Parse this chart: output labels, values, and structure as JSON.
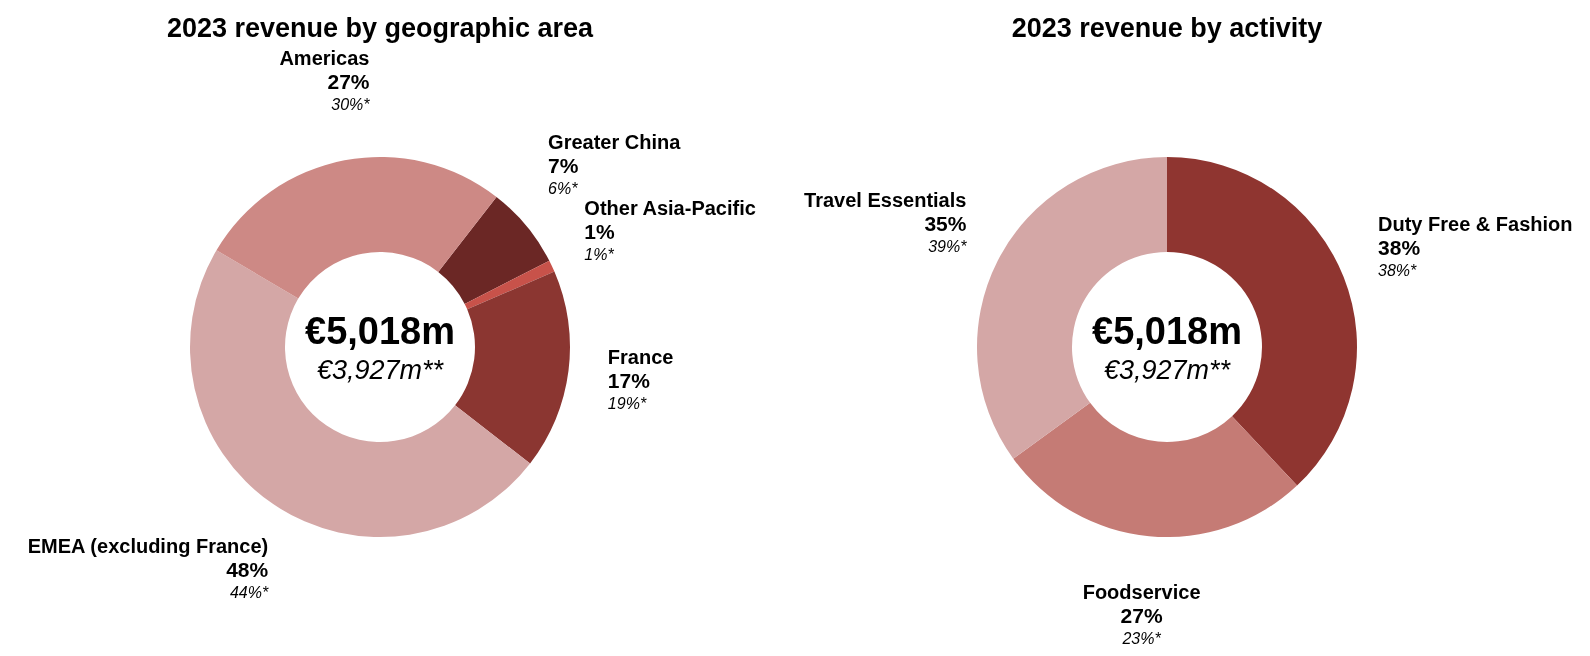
{
  "chart_data": [
    {
      "type": "donut",
      "title": "2023 revenue by geographic area",
      "categories": [
        "Greater China",
        "Other Asia-Pacific",
        "France",
        "EMEA (excluding France)",
        "Americas"
      ],
      "values": [
        7,
        1,
        17,
        48,
        27
      ],
      "colors": [
        "#6b2725",
        "#c8524a",
        "#8b3631",
        "#d4a7a6",
        "#cd8985"
      ],
      "value_labels": [
        "7%",
        "1%",
        "17%",
        "48%",
        "27%"
      ],
      "annotations": [
        "€5,018m",
        "€3,927m**",
        {
          "text": "6%*",
          "x": "Greater China"
        },
        {
          "text": "1%*",
          "x": "Other Asia-Pacific"
        },
        {
          "text": "19%*",
          "x": "France"
        },
        {
          "text": "44%*",
          "x": "EMEA (excluding France)"
        },
        {
          "text": "30%*",
          "x": "Americas"
        }
      ],
      "legend": false
    },
    {
      "type": "donut",
      "title": "2023 revenue by activity",
      "categories": [
        "Duty Free & Fashion",
        "Foodservice",
        "Travel Essentials"
      ],
      "values": [
        38,
        27,
        35
      ],
      "colors": [
        "#8f3530",
        "#c57b75",
        "#d4a7a6"
      ],
      "value_labels": [
        "38%",
        "27%",
        "35%"
      ],
      "annotations": [
        "€5,018m",
        "€3,927m**",
        {
          "text": "38%*",
          "x": "Duty Free & Fashion"
        },
        {
          "text": "23%*",
          "x": "Foodservice"
        },
        {
          "text": "39%*",
          "x": "Travel Essentials"
        }
      ],
      "legend": false
    }
  ]
}
